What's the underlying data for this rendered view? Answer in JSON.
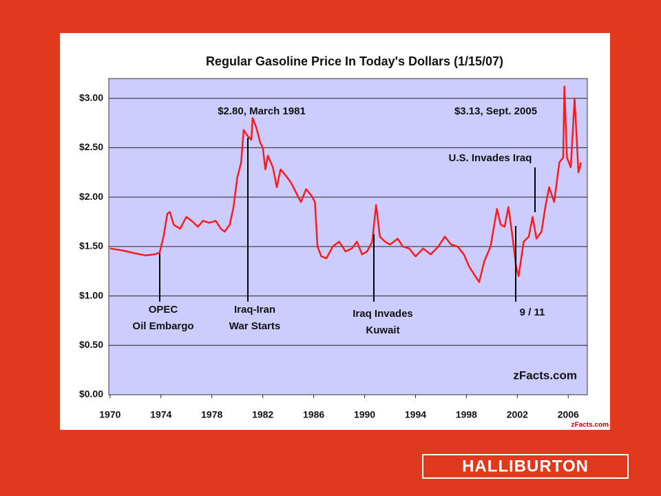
{
  "chart_data": {
    "type": "line",
    "title": "Regular Gasoline Price In Today's Dollars (1/15/07)",
    "color": "#ff1a1a",
    "x": [
      1970.0,
      1971.0,
      1972.0,
      1972.8,
      1973.5,
      1973.9,
      1974.2,
      1974.5,
      1974.7,
      1975.0,
      1975.5,
      1976.0,
      1976.5,
      1976.9,
      1977.3,
      1977.8,
      1978.3,
      1978.7,
      1979.0,
      1979.4,
      1979.7,
      1980.0,
      1980.3,
      1980.5,
      1980.8,
      1981.1,
      1981.2,
      1981.5,
      1981.8,
      1982.0,
      1982.2,
      1982.4,
      1982.8,
      1983.1,
      1983.4,
      1983.8,
      1984.2,
      1984.6,
      1985.0,
      1985.4,
      1985.8,
      1986.1,
      1986.3,
      1986.6,
      1987.0,
      1987.5,
      1988.0,
      1988.5,
      1989.0,
      1989.4,
      1989.8,
      1990.2,
      1990.6,
      1990.9,
      1991.2,
      1991.6,
      1992.0,
      1992.6,
      1993.0,
      1993.5,
      1994.0,
      1994.6,
      1995.2,
      1995.8,
      1996.3,
      1996.8,
      1997.3,
      1997.8,
      1998.2,
      1998.7,
      1999.0,
      1999.4,
      1999.9,
      2000.4,
      2000.7,
      2001.0,
      2001.3,
      2001.6,
      2001.9,
      2002.1,
      2002.5,
      2002.9,
      2003.2,
      2003.5,
      2003.9,
      2004.2,
      2004.5,
      2004.9,
      2005.3,
      2005.6,
      2005.7,
      2005.9,
      2006.2,
      2006.5,
      2006.8,
      2007.0
    ],
    "values": [
      1.48,
      1.46,
      1.43,
      1.41,
      1.42,
      1.44,
      1.6,
      1.83,
      1.85,
      1.72,
      1.68,
      1.8,
      1.75,
      1.7,
      1.76,
      1.74,
      1.76,
      1.68,
      1.65,
      1.72,
      1.9,
      2.2,
      2.35,
      2.68,
      2.62,
      2.58,
      2.8,
      2.7,
      2.55,
      2.5,
      2.28,
      2.42,
      2.3,
      2.1,
      2.28,
      2.22,
      2.15,
      2.05,
      1.95,
      2.08,
      2.02,
      1.95,
      1.5,
      1.4,
      1.38,
      1.5,
      1.55,
      1.45,
      1.48,
      1.55,
      1.42,
      1.45,
      1.55,
      1.92,
      1.6,
      1.55,
      1.52,
      1.58,
      1.5,
      1.48,
      1.4,
      1.48,
      1.42,
      1.5,
      1.6,
      1.52,
      1.5,
      1.42,
      1.3,
      1.2,
      1.14,
      1.35,
      1.5,
      1.88,
      1.72,
      1.7,
      1.9,
      1.62,
      1.3,
      1.2,
      1.55,
      1.6,
      1.8,
      1.58,
      1.65,
      1.9,
      2.1,
      1.95,
      2.35,
      2.4,
      3.12,
      2.4,
      2.3,
      3.0,
      2.25,
      2.35
    ],
    "xlim": [
      1969.9,
      2007.5
    ],
    "xticks": [
      1970,
      1974,
      1978,
      1982,
      1986,
      1990,
      1994,
      1998,
      2002,
      2006
    ],
    "ylim": [
      0,
      3.2
    ],
    "yticks": [
      {
        "value": 0,
        "label": "$0.00"
      },
      {
        "value": 0.5,
        "label": "$0.50"
      },
      {
        "value": 1,
        "label": "$1.00"
      },
      {
        "value": 1.5,
        "label": "$1.50"
      },
      {
        "value": 2,
        "label": "$2.00"
      },
      {
        "value": 2.5,
        "label": "$2.50"
      },
      {
        "value": 3,
        "label": "$3.00"
      }
    ],
    "grid": true,
    "annotations": [
      {
        "lines": [
          "$2.80, March 1981"
        ]
      },
      {
        "lines": [
          "$3.13, Sept. 2005"
        ]
      },
      {
        "lines": [
          "U.S. Invades Iraq"
        ]
      },
      {
        "lines": [
          "OPEC",
          "Oil Embargo"
        ]
      },
      {
        "lines": [
          "Iraq-Iran",
          "War Starts"
        ]
      },
      {
        "lines": [
          "Iraq Invades",
          "Kuwait"
        ]
      },
      {
        "lines": [
          "9 / 11"
        ]
      }
    ],
    "watermark": "zFacts.com",
    "logo": "zFacts.com"
  },
  "footer_logo": "HALLIBURTON"
}
